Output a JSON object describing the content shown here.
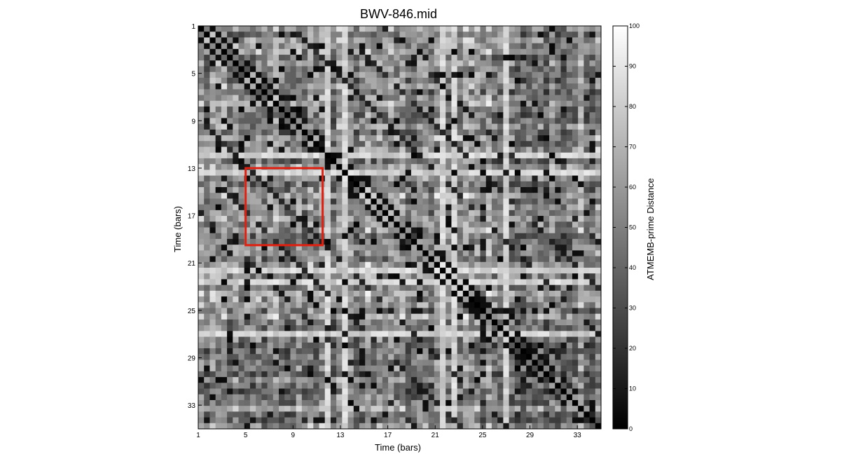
{
  "chart_data": {
    "type": "heatmap",
    "title": "BWV-846.mid",
    "xlabel": "Time (bars)",
    "ylabel": "Time (bars)",
    "colorbar_label": "ATMEMB-prime Distance",
    "colormap": "gray",
    "resolution": "half-bar",
    "bars": 35,
    "xlim": [
      1,
      35
    ],
    "ylim": [
      1,
      35
    ],
    "x_ticks": [
      "1",
      "5",
      "9",
      "13",
      "17",
      "21",
      "25",
      "29",
      "33"
    ],
    "y_ticks": [
      "1",
      "5",
      "9",
      "13",
      "17",
      "21",
      "25",
      "29",
      "33"
    ],
    "color_range": [
      0,
      100
    ],
    "colorbar_ticks": [
      "0",
      "10",
      "20",
      "30",
      "40",
      "50",
      "60",
      "70",
      "80",
      "90",
      "100"
    ],
    "diagonal_value": 0,
    "bright_bars": [
      12,
      13.5,
      22,
      23,
      27.5
    ],
    "highlight_box": {
      "x_range": [
        5,
        11.5
      ],
      "y_range": [
        13,
        19.5
      ],
      "color": "#e02010"
    }
  }
}
